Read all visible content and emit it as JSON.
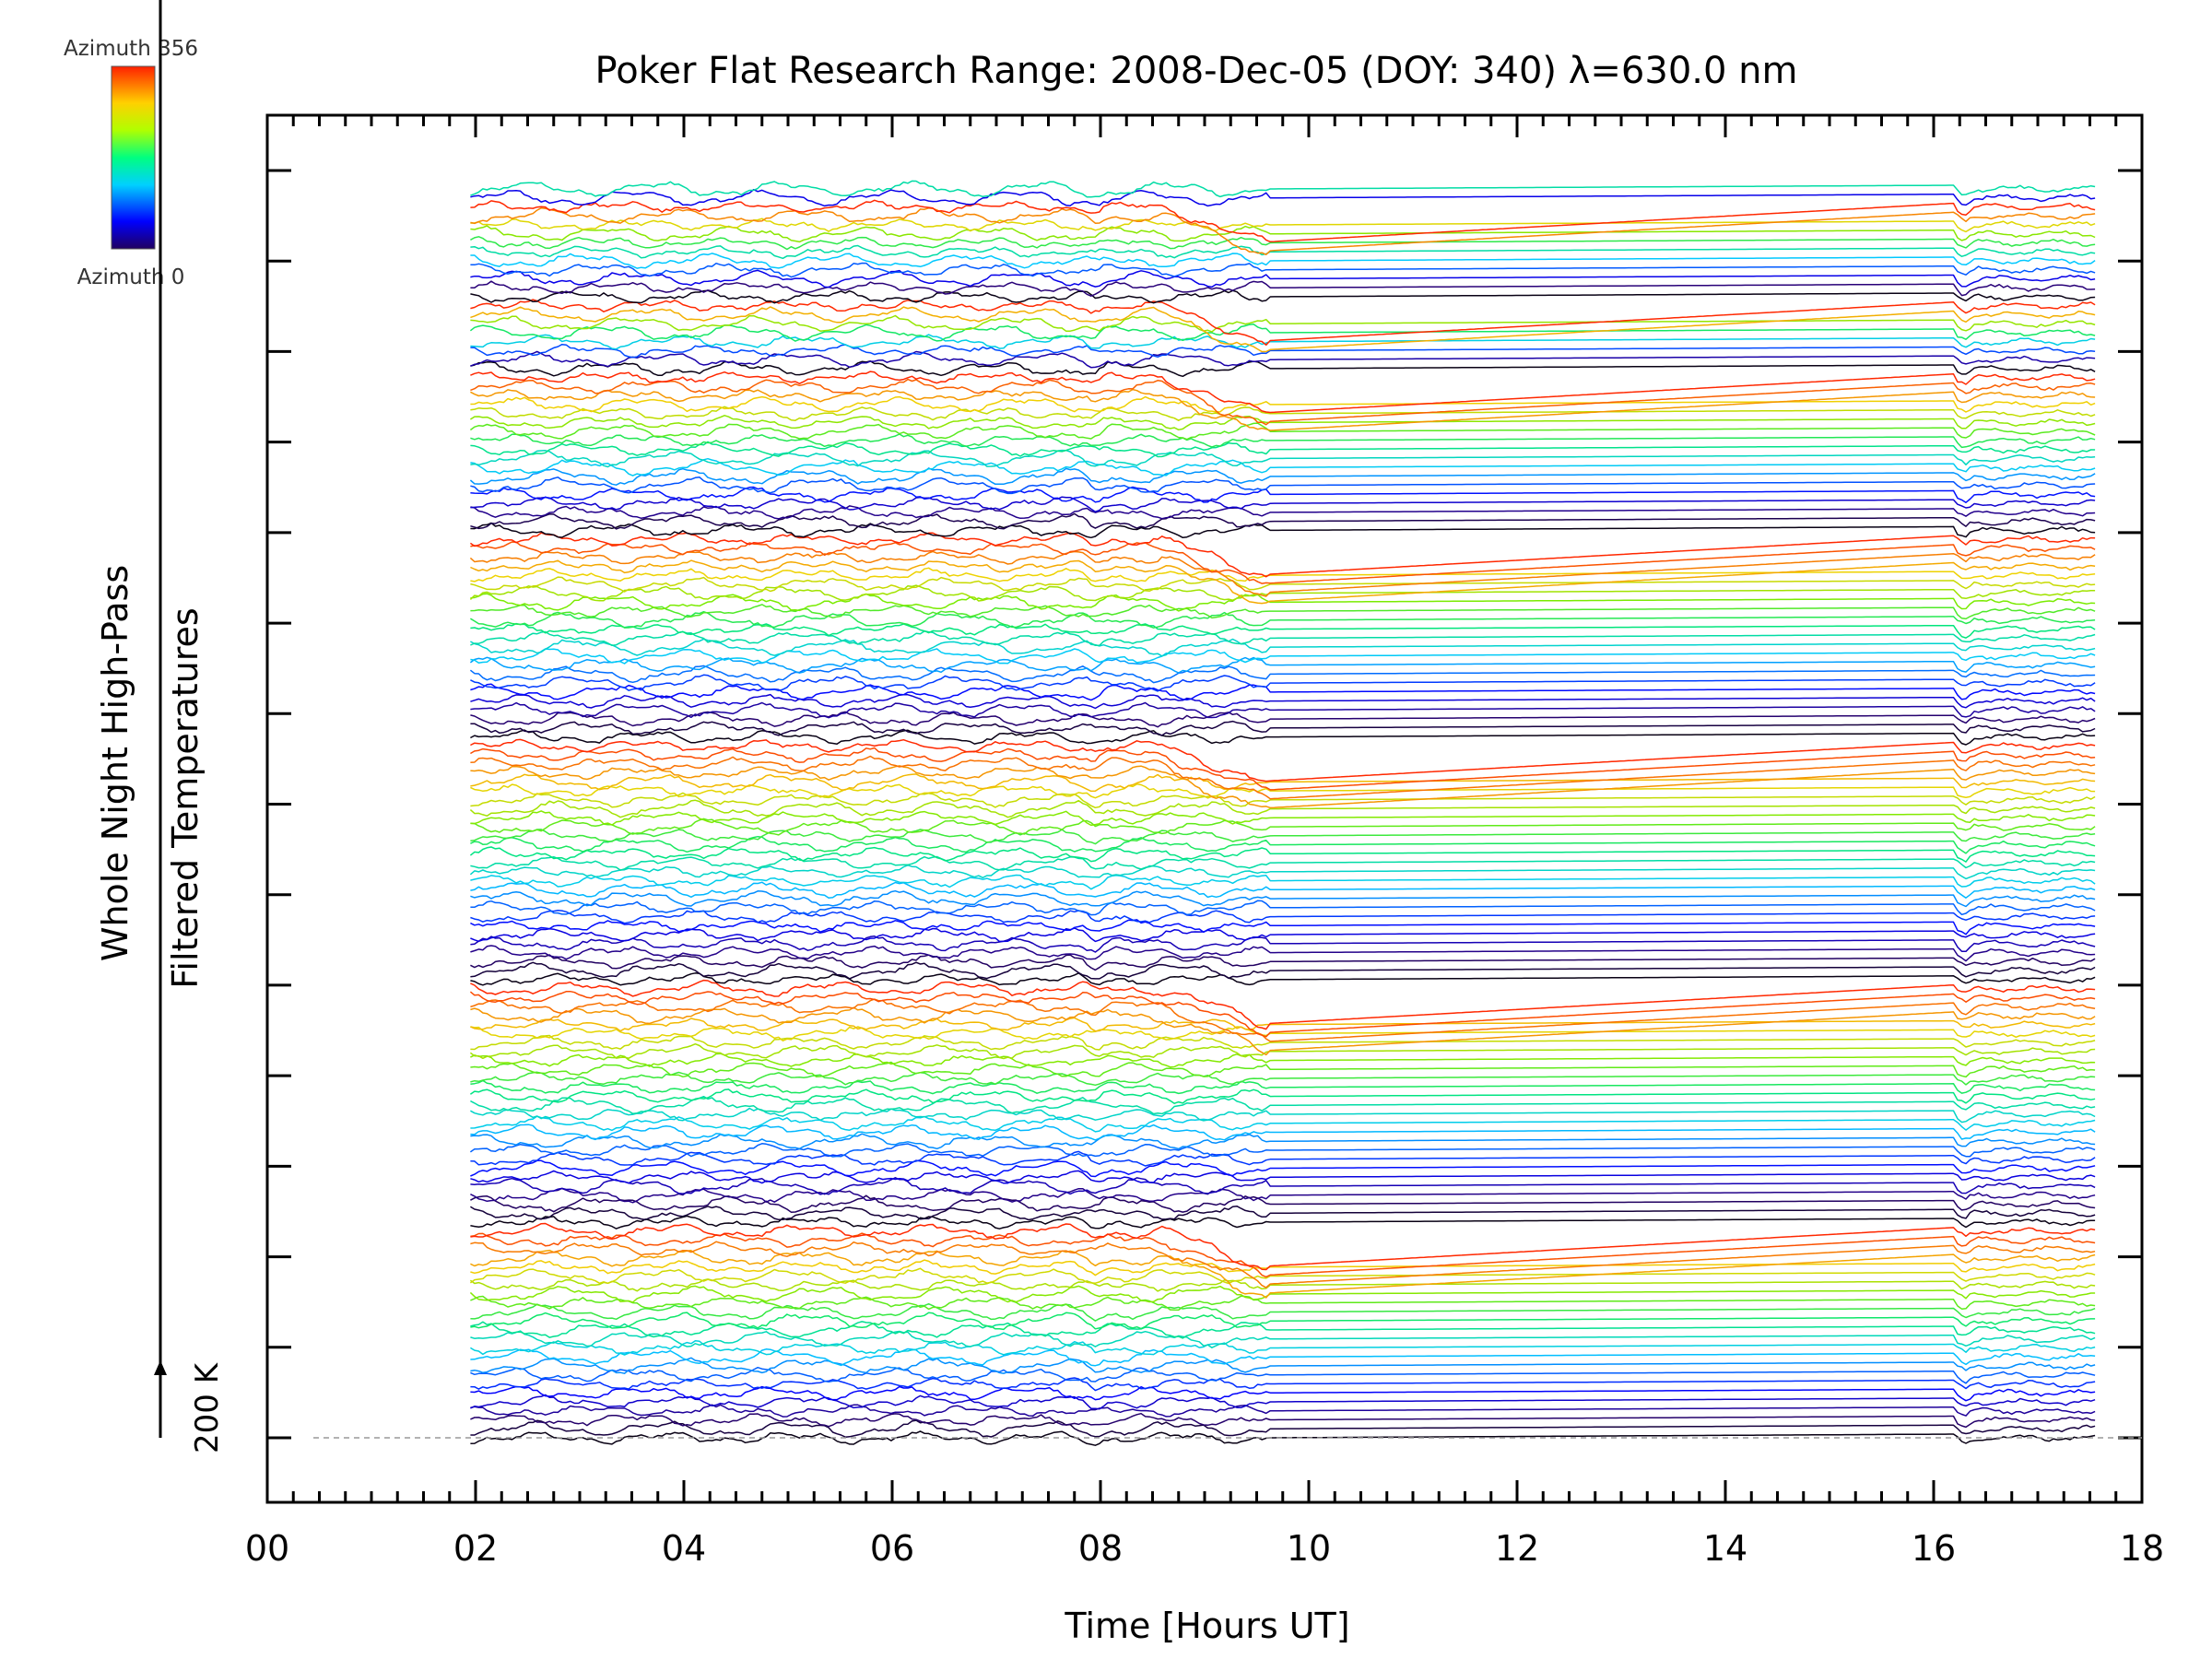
{
  "chart_data": {
    "type": "line",
    "title": "Poker Flat Research Range: 2008-Dec-05 (DOY: 340) λ=630.0 nm",
    "xlabel": "Time [Hours UT]",
    "ylabel": [
      "Whole Night High-Pass",
      "Filtered Temperatures"
    ],
    "xlim": [
      0,
      18
    ],
    "x_ticks": [
      "00",
      "02",
      "04",
      "06",
      "08",
      "10",
      "12",
      "14",
      "16",
      "18"
    ],
    "y_ticks_count": 15,
    "grid": false,
    "legend": "colorbar-top-left",
    "colorbar": {
      "top_label": "Azimuth 356",
      "bottom_label": "Azimuth 0",
      "colormap": "rainbow"
    },
    "scale_bar": {
      "label": "200 K"
    },
    "data_start_hour": 1.95,
    "data_end_hour": 17.55,
    "gap_start_hour": 9.6,
    "gap_end_hour": 16.2,
    "series_count": 140,
    "cycle_lengths": [
      24,
      27,
      27,
      23,
      18,
      8,
      11
    ]
  }
}
